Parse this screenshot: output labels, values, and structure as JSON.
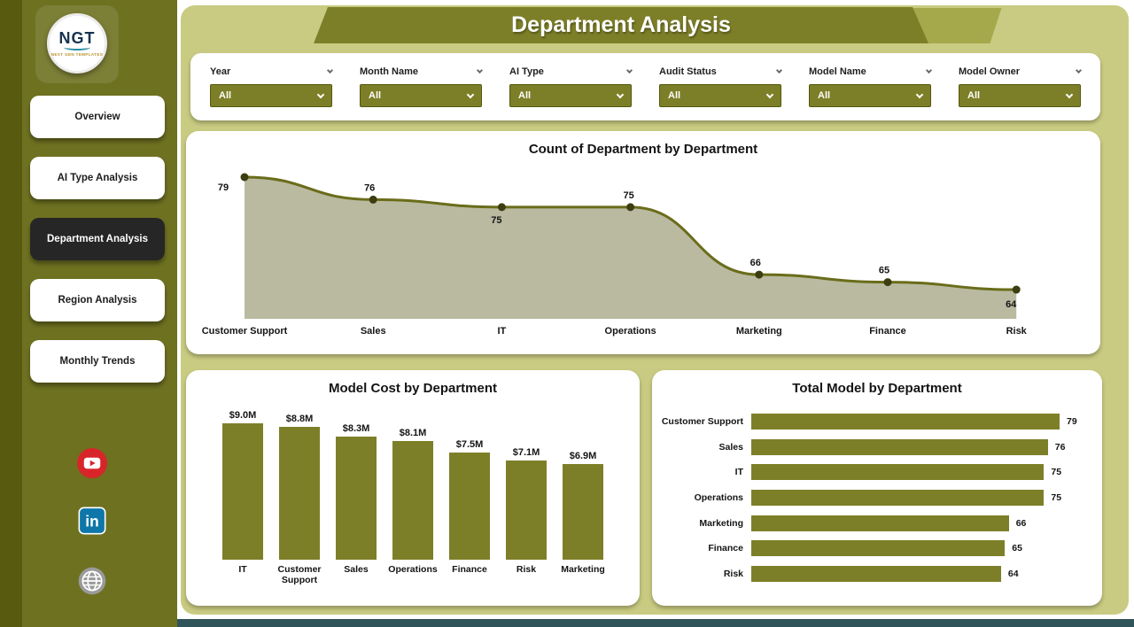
{
  "page_title": "Department Analysis",
  "sidebar": {
    "logo": {
      "text": "NGT",
      "sub": "NEXT GEN TEMPLATES"
    },
    "items": [
      {
        "label": "Overview",
        "active": false
      },
      {
        "label": "AI Type Analysis",
        "active": false
      },
      {
        "label": "Department Analysis",
        "active": true
      },
      {
        "label": "Region Analysis",
        "active": false
      },
      {
        "label": "Monthly Trends",
        "active": false
      }
    ],
    "social": [
      "youtube",
      "linkedin",
      "web"
    ]
  },
  "filters": [
    {
      "label": "Year",
      "value": "All"
    },
    {
      "label": "Month Name",
      "value": "All"
    },
    {
      "label": "AI Type",
      "value": "All"
    },
    {
      "label": "Audit Status",
      "value": "All"
    },
    {
      "label": "Model Name",
      "value": "All"
    },
    {
      "label": "Model Owner",
      "value": "All"
    }
  ],
  "chart_data": [
    {
      "type": "area",
      "title": "Count of Department by Department",
      "categories": [
        "Customer Support",
        "Sales",
        "IT",
        "Operations",
        "Marketing",
        "Finance",
        "Risk"
      ],
      "values": [
        79,
        76,
        75,
        75,
        66,
        65,
        64
      ],
      "ylim": [
        60,
        80
      ],
      "grid": false,
      "legend": "none"
    },
    {
      "type": "bar",
      "title": "Model Cost by Department",
      "categories": [
        "IT",
        "Customer Support",
        "Sales",
        "Operations",
        "Finance",
        "Risk",
        "Marketing"
      ],
      "values": [
        9.0,
        8.8,
        8.3,
        8.1,
        7.5,
        7.1,
        6.9
      ],
      "value_labels": [
        "$9.0M",
        "$8.8M",
        "$8.3M",
        "$8.1M",
        "$7.5M",
        "$7.1M",
        "$6.9M"
      ],
      "ylabel": "",
      "xlabel": "",
      "grid": false,
      "legend": "none"
    },
    {
      "type": "bar-horizontal",
      "title": "Total Model by Department",
      "categories": [
        "Customer Support",
        "Sales",
        "IT",
        "Operations",
        "Marketing",
        "Finance",
        "Risk"
      ],
      "values": [
        79,
        76,
        75,
        75,
        66,
        65,
        64
      ],
      "xlim": [
        0,
        79
      ],
      "grid": false,
      "legend": "none"
    }
  ],
  "colors": {
    "accent": "#7d7f28",
    "background": "#c9cb82",
    "sidebar": "#6e7120",
    "sidebar_edge": "#585a10",
    "active_nav": "#262626",
    "teal_strip": "#2f545a",
    "area_fill": "#b9baa0",
    "area_line": "#6a6c1a",
    "area_dot": "#3c3d10",
    "youtube_red": "#d8252a",
    "linkedin_blue": "#0e76a8"
  }
}
